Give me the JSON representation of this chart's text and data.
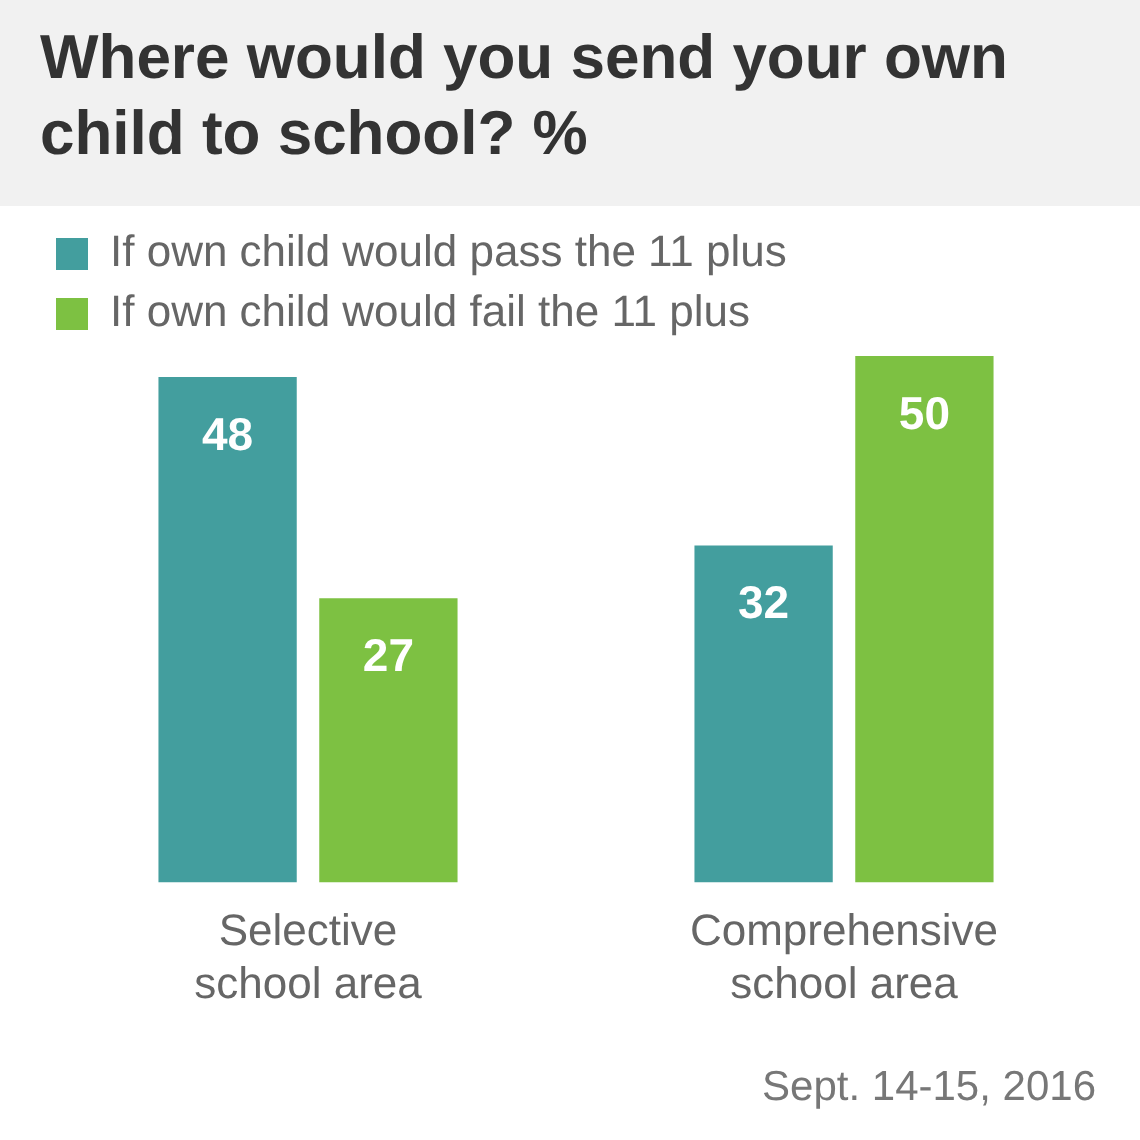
{
  "chart_data": {
    "type": "bar",
    "title": "Where would you send your own child to school? %",
    "categories": [
      "Selective school area",
      "Comprehensive school area"
    ],
    "series": [
      {
        "name": "If own child would pass the 11 plus",
        "color": "#439e9e",
        "values": [
          48,
          32
        ]
      },
      {
        "name": "If own child would fail the 11 plus",
        "color": "#7dc142",
        "values": [
          27,
          50
        ]
      }
    ],
    "ylim": [
      0,
      50
    ],
    "data_labels": true,
    "grid": false,
    "legend": "top left",
    "tick_labels": "x",
    "annotations": [
      "Sept. 14-15, 2016"
    ]
  }
}
